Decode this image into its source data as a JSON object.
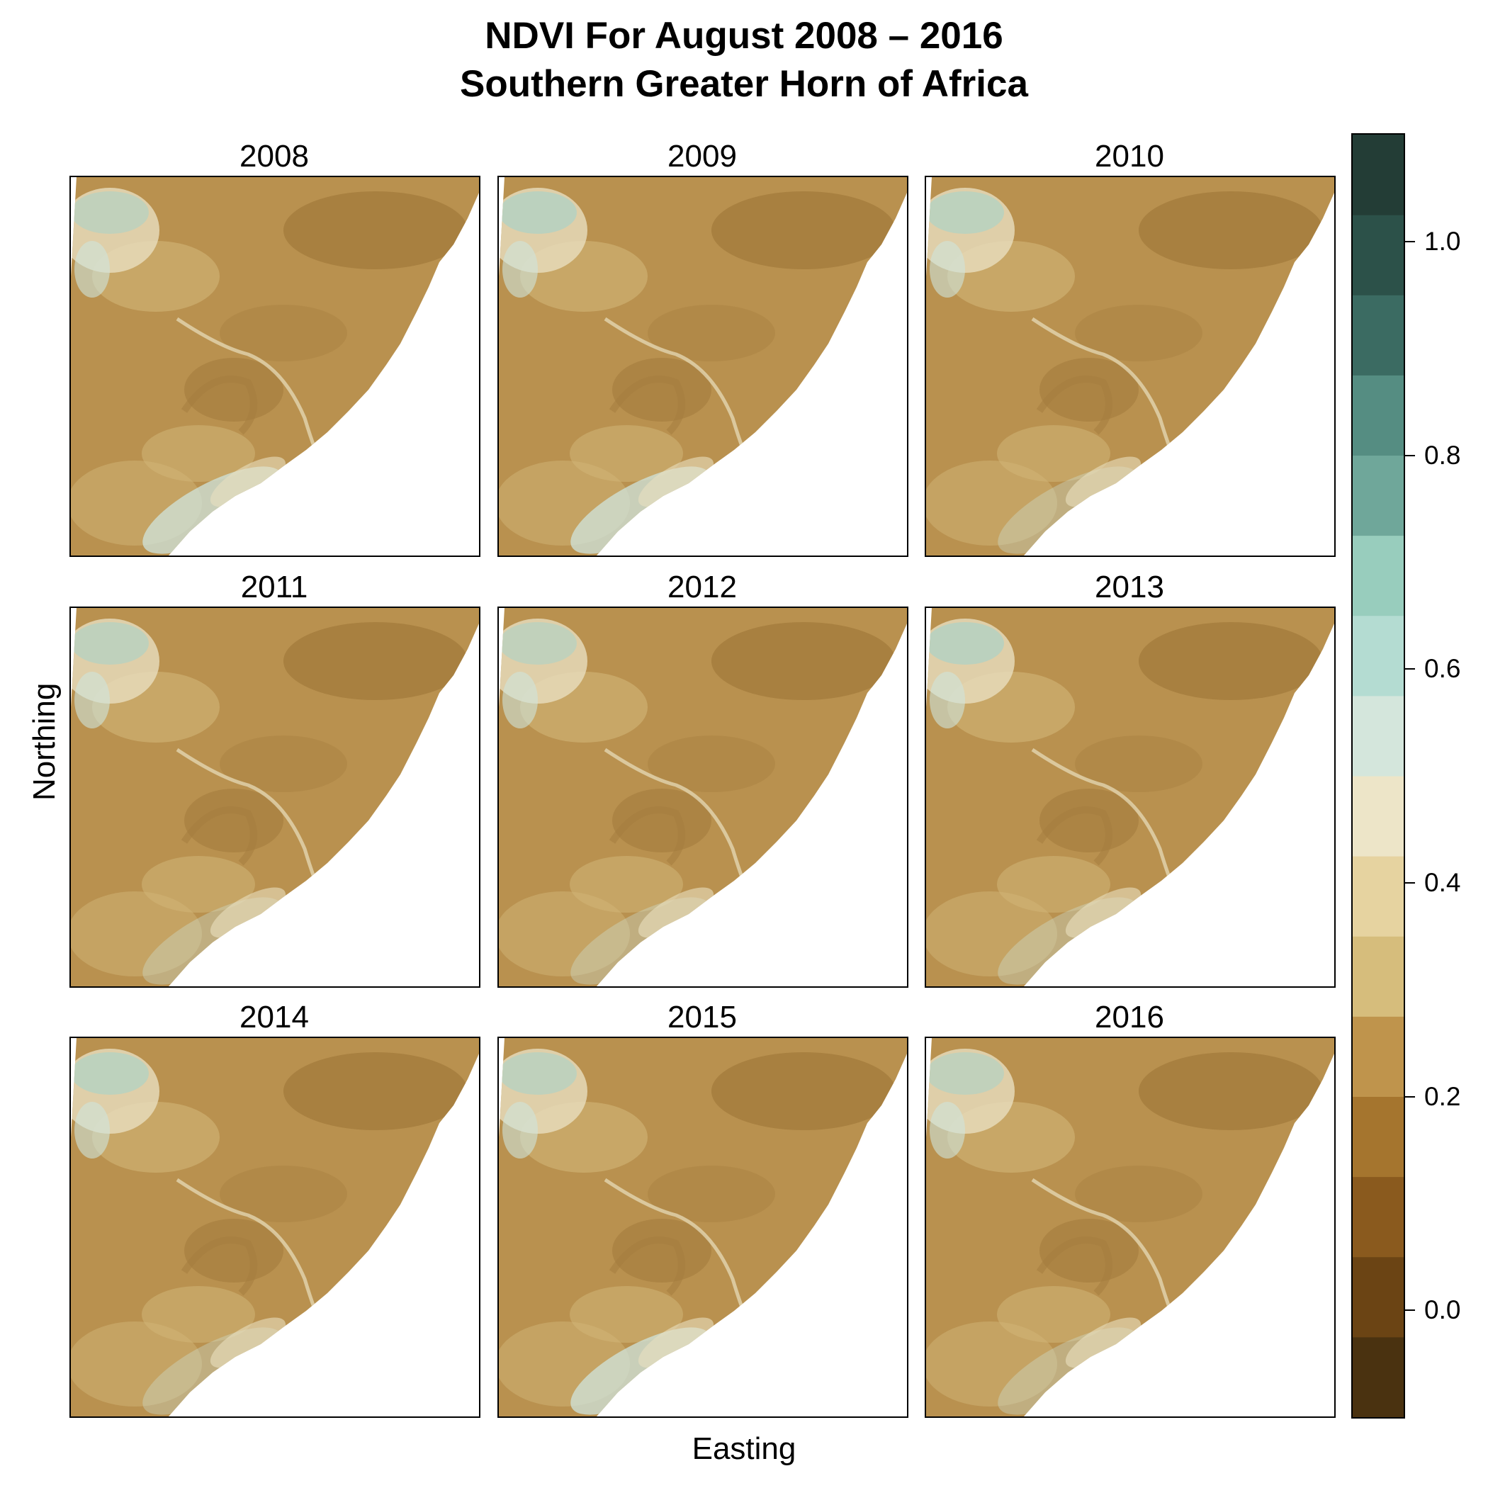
{
  "title": {
    "line1": "NDVI For August 2008 – 2016",
    "line2": "Southern Greater Horn of Africa"
  },
  "axes": {
    "xlabel": "Easting",
    "ylabel": "Northing"
  },
  "panels": [
    {
      "year": "2008"
    },
    {
      "year": "2009"
    },
    {
      "year": "2010"
    },
    {
      "year": "2011"
    },
    {
      "year": "2012"
    },
    {
      "year": "2013"
    },
    {
      "year": "2014"
    },
    {
      "year": "2015"
    },
    {
      "year": "2016"
    }
  ],
  "colorbar": {
    "min": -0.1,
    "max": 1.1,
    "bin_edges": [
      -0.1,
      0.0,
      0.1,
      0.2,
      0.3,
      0.4,
      0.5,
      0.6,
      0.7,
      0.8,
      0.9,
      1.0,
      1.1
    ],
    "colors": [
      "#4a3210",
      "#6b4414",
      "#8a5a1e",
      "#a5752e",
      "#bf944c",
      "#d6bd7c",
      "#e6d3a0",
      "#ede5c8",
      "#d4e6dc",
      "#b4dcd2",
      "#98cdbd",
      "#6fa79a",
      "#558d82",
      "#3b6b62",
      "#2c5149",
      "#233d36"
    ],
    "ticks": [
      {
        "value": 0.0,
        "label": "0.0"
      },
      {
        "value": 0.2,
        "label": "0.2"
      },
      {
        "value": 0.4,
        "label": "0.4"
      },
      {
        "value": 0.6,
        "label": "0.6"
      },
      {
        "value": 0.8,
        "label": "0.8"
      },
      {
        "value": 1.0,
        "label": "1.0"
      }
    ]
  },
  "map_colors": {
    "land_base": "#b9914f",
    "land_dark": "#a47c3d",
    "land_light": "#d2b678",
    "pale": "#e9dfbf",
    "green_pale": "#cfe4dc",
    "green": "#a8d3ca",
    "ocean": "#ffffff"
  }
}
